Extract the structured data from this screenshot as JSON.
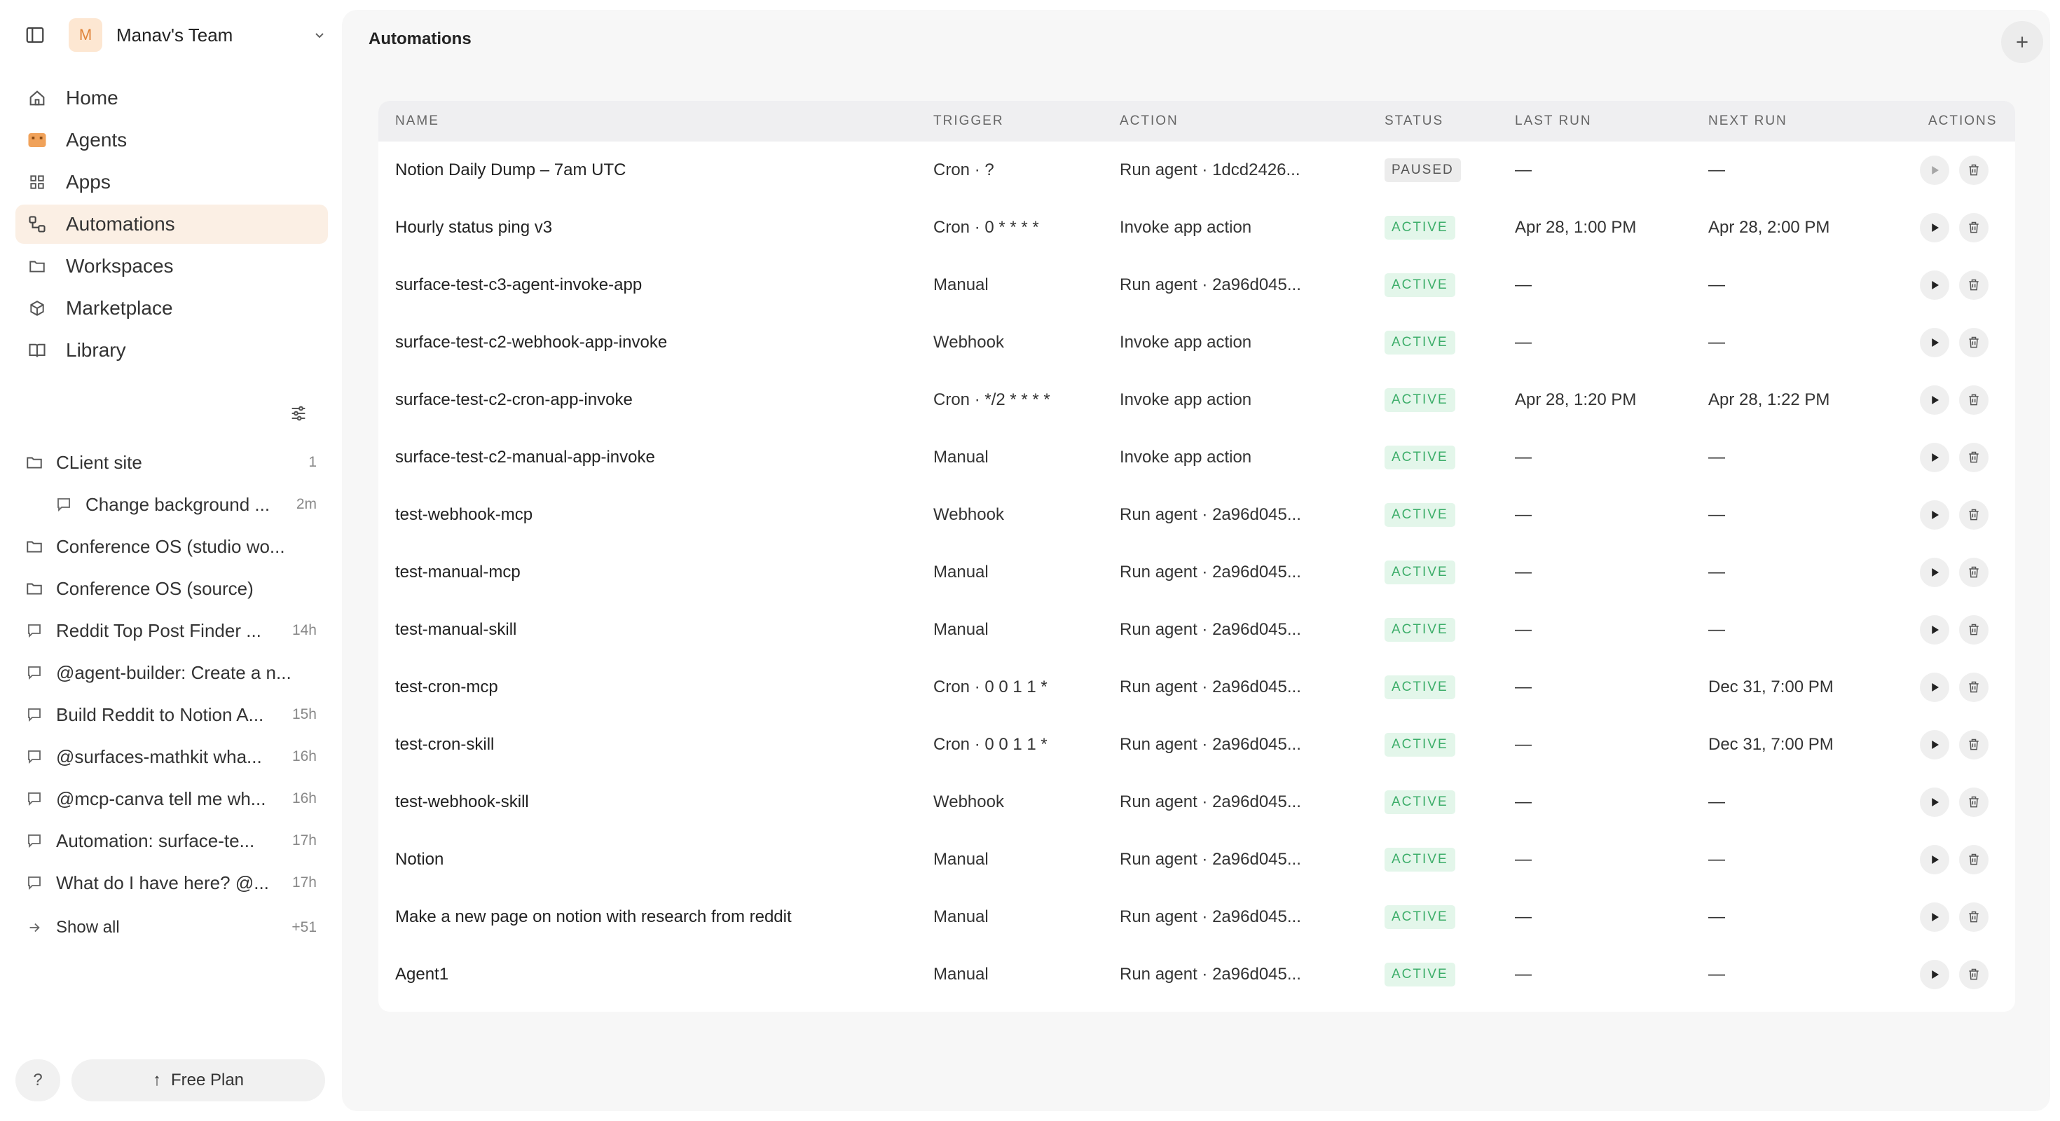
{
  "sidebar": {
    "team": {
      "initial": "M",
      "name": "Manav's Team"
    },
    "nav": [
      {
        "label": "Home",
        "icon": "home-icon"
      },
      {
        "label": "Agents",
        "icon": "agents-icon"
      },
      {
        "label": "Apps",
        "icon": "apps-grid-icon"
      },
      {
        "label": "Automations",
        "icon": "automations-icon",
        "active": true
      },
      {
        "label": "Workspaces",
        "icon": "folder-icon"
      },
      {
        "label": "Marketplace",
        "icon": "cube-icon"
      },
      {
        "label": "Library",
        "icon": "book-icon"
      }
    ],
    "recents": [
      {
        "label": "CLient site",
        "meta": "1",
        "icon": "folder-icon"
      },
      {
        "label": "Change background ...",
        "meta": "2m",
        "icon": "chat-icon",
        "child": true
      },
      {
        "label": "Conference OS (studio wo...",
        "meta": "",
        "icon": "folder-icon"
      },
      {
        "label": "Conference OS (source)",
        "meta": "",
        "icon": "folder-icon"
      },
      {
        "label": "Reddit Top Post Finder ...",
        "meta": "14h",
        "icon": "chat-icon"
      },
      {
        "label": "@agent-builder: Create a n...",
        "meta": "",
        "icon": "chat-icon"
      },
      {
        "label": "Build Reddit to Notion A...",
        "meta": "15h",
        "icon": "chat-icon"
      },
      {
        "label": "@surfaces-mathkit wha...",
        "meta": "16h",
        "icon": "chat-icon"
      },
      {
        "label": "@mcp-canva tell me wh...",
        "meta": "16h",
        "icon": "chat-icon"
      },
      {
        "label": "Automation: surface-te...",
        "meta": "17h",
        "icon": "chat-icon"
      },
      {
        "label": "What do I have here? @...",
        "meta": "17h",
        "icon": "chat-icon"
      }
    ],
    "show_all": {
      "label": "Show all",
      "meta": "+51"
    },
    "help_label": "?",
    "plan_label": "Free Plan"
  },
  "main": {
    "title": "Automations",
    "columns": [
      "NAME",
      "TRIGGER",
      "ACTION",
      "STATUS",
      "LAST RUN",
      "NEXT RUN",
      "ACTIONS"
    ],
    "rows": [
      {
        "name": "Notion Daily Dump – 7am UTC",
        "trigger": "Cron · ?",
        "action": "Run agent · 1dcd2426...",
        "status": "PAUSED",
        "last": "—",
        "next": "—"
      },
      {
        "name": "Hourly status ping v3",
        "trigger": "Cron · 0 * * * *",
        "action": "Invoke app action",
        "status": "ACTIVE",
        "last": "Apr 28, 1:00 PM",
        "next": "Apr 28, 2:00 PM"
      },
      {
        "name": "surface-test-c3-agent-invoke-app",
        "trigger": "Manual",
        "action": "Run agent · 2a96d045...",
        "status": "ACTIVE",
        "last": "—",
        "next": "—"
      },
      {
        "name": "surface-test-c2-webhook-app-invoke",
        "trigger": "Webhook",
        "action": "Invoke app action",
        "status": "ACTIVE",
        "last": "—",
        "next": "—"
      },
      {
        "name": "surface-test-c2-cron-app-invoke",
        "trigger": "Cron · */2 * * * *",
        "action": "Invoke app action",
        "status": "ACTIVE",
        "last": "Apr 28, 1:20 PM",
        "next": "Apr 28, 1:22 PM"
      },
      {
        "name": "surface-test-c2-manual-app-invoke",
        "trigger": "Manual",
        "action": "Invoke app action",
        "status": "ACTIVE",
        "last": "—",
        "next": "—"
      },
      {
        "name": "test-webhook-mcp",
        "trigger": "Webhook",
        "action": "Run agent · 2a96d045...",
        "status": "ACTIVE",
        "last": "—",
        "next": "—"
      },
      {
        "name": "test-manual-mcp",
        "trigger": "Manual",
        "action": "Run agent · 2a96d045...",
        "status": "ACTIVE",
        "last": "—",
        "next": "—"
      },
      {
        "name": "test-manual-skill",
        "trigger": "Manual",
        "action": "Run agent · 2a96d045...",
        "status": "ACTIVE",
        "last": "—",
        "next": "—"
      },
      {
        "name": "test-cron-mcp",
        "trigger": "Cron · 0 0 1 1 *",
        "action": "Run agent · 2a96d045...",
        "status": "ACTIVE",
        "last": "—",
        "next": "Dec 31, 7:00 PM"
      },
      {
        "name": "test-cron-skill",
        "trigger": "Cron · 0 0 1 1 *",
        "action": "Run agent · 2a96d045...",
        "status": "ACTIVE",
        "last": "—",
        "next": "Dec 31, 7:00 PM"
      },
      {
        "name": "test-webhook-skill",
        "trigger": "Webhook",
        "action": "Run agent · 2a96d045...",
        "status": "ACTIVE",
        "last": "—",
        "next": "—"
      },
      {
        "name": "Notion",
        "trigger": "Manual",
        "action": "Run agent · 2a96d045...",
        "status": "ACTIVE",
        "last": "—",
        "next": "—"
      },
      {
        "name": "Make a new page on notion with research from reddit",
        "trigger": "Manual",
        "action": "Run agent · 2a96d045...",
        "status": "ACTIVE",
        "last": "—",
        "next": "—"
      },
      {
        "name": "Agent1",
        "trigger": "Manual",
        "action": "Run agent · 2a96d045...",
        "status": "ACTIVE",
        "last": "—",
        "next": "—"
      }
    ]
  },
  "colors": {
    "accent_bg": "#fbefe4",
    "avatar_bg": "#fde7d2",
    "avatar_fg": "#e0843a",
    "active_badge_bg": "#e3f6ea",
    "active_badge_fg": "#3dae6a",
    "paused_badge_bg": "#ececec",
    "main_bg": "#f7f7f7"
  }
}
